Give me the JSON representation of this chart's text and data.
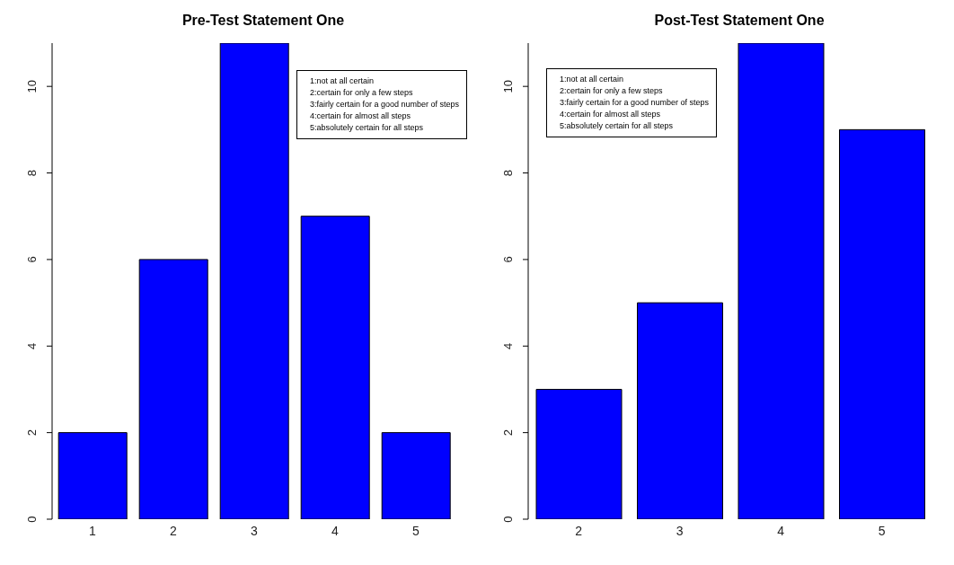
{
  "chart_data": [
    {
      "type": "bar",
      "title": "Pre-Test Statement One",
      "categories": [
        "1",
        "2",
        "3",
        "4",
        "5"
      ],
      "values": [
        2,
        6,
        11,
        7,
        2
      ],
      "color": "#0000ff",
      "ylim": [
        0,
        11
      ],
      "yticks": [
        0,
        2,
        4,
        6,
        8,
        10
      ],
      "grid": false,
      "legend": false,
      "annotations": [
        "1:not at all certain",
        "2:certain for only a few steps",
        "3:fairly certain for a good number of steps",
        "4:certain for almost all steps",
        "5:absolutely certain for all steps"
      ]
    },
    {
      "type": "bar",
      "title": "Post-Test Statement One",
      "categories": [
        "2",
        "3",
        "4",
        "5"
      ],
      "values": [
        3,
        5,
        11,
        9
      ],
      "color": "#0000ff",
      "ylim": [
        0,
        11
      ],
      "yticks": [
        0,
        2,
        4,
        6,
        8,
        10
      ],
      "grid": false,
      "legend": false,
      "annotations": [
        "1:not at all certain",
        "2:certain for only a few steps",
        "3:fairly certain for a good number of steps",
        "4:certain for almost all steps",
        "5:absolutely certain for all steps"
      ]
    }
  ]
}
